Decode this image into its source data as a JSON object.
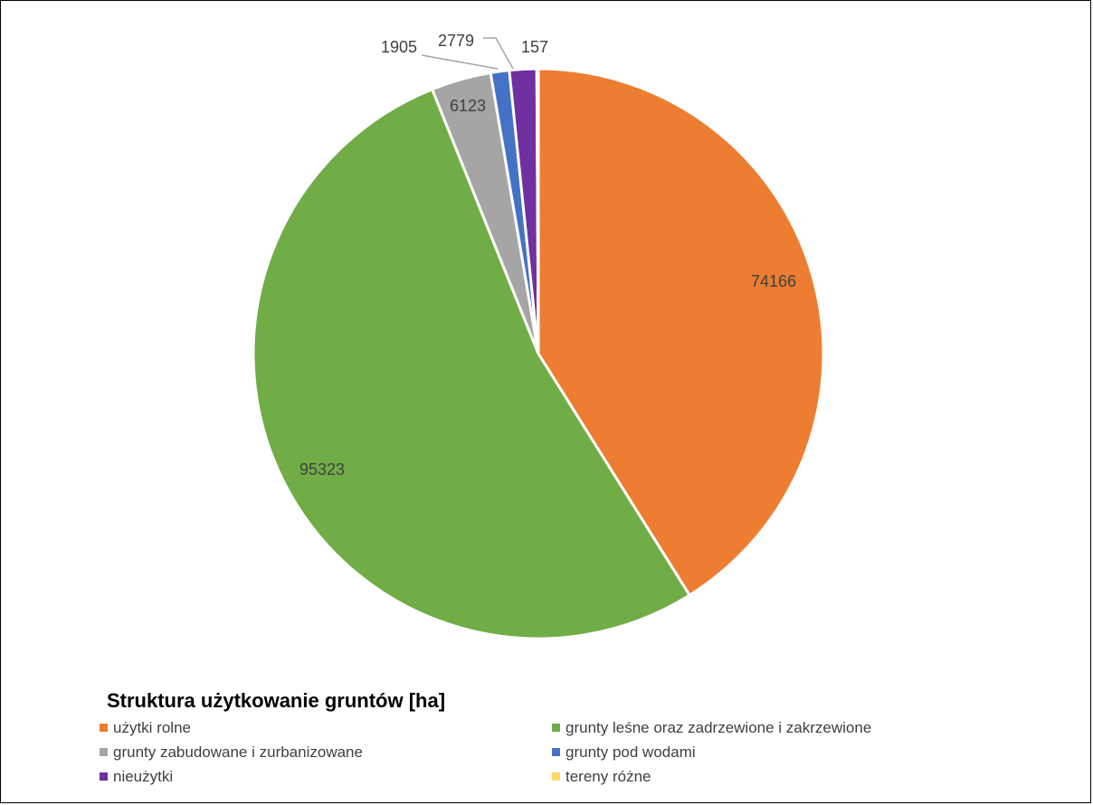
{
  "chart_data": {
    "type": "pie",
    "title": "Struktura użytkowanie gruntów [ha]",
    "legend_placement": "bottom",
    "slices": [
      {
        "label": "użytki rolne",
        "value": 74166,
        "color": "#ED7D31"
      },
      {
        "label": "grunty leśne oraz zadrzewione i zakrzewione",
        "value": 95323,
        "color": "#70AD47"
      },
      {
        "label": "grunty zabudowane i zurbanizowane",
        "value": 6123,
        "color": "#A5A5A5"
      },
      {
        "label": "grunty pod wodami",
        "value": 1905,
        "color": "#4472C4"
      },
      {
        "label": "nieużytki",
        "value": 2779,
        "color": "#7030A0"
      },
      {
        "label": "tereny różne",
        "value": 157,
        "color": "#FFD966"
      }
    ],
    "data_labels": [
      "74166",
      "95323",
      "6123",
      "1905",
      "2779",
      "157"
    ]
  }
}
